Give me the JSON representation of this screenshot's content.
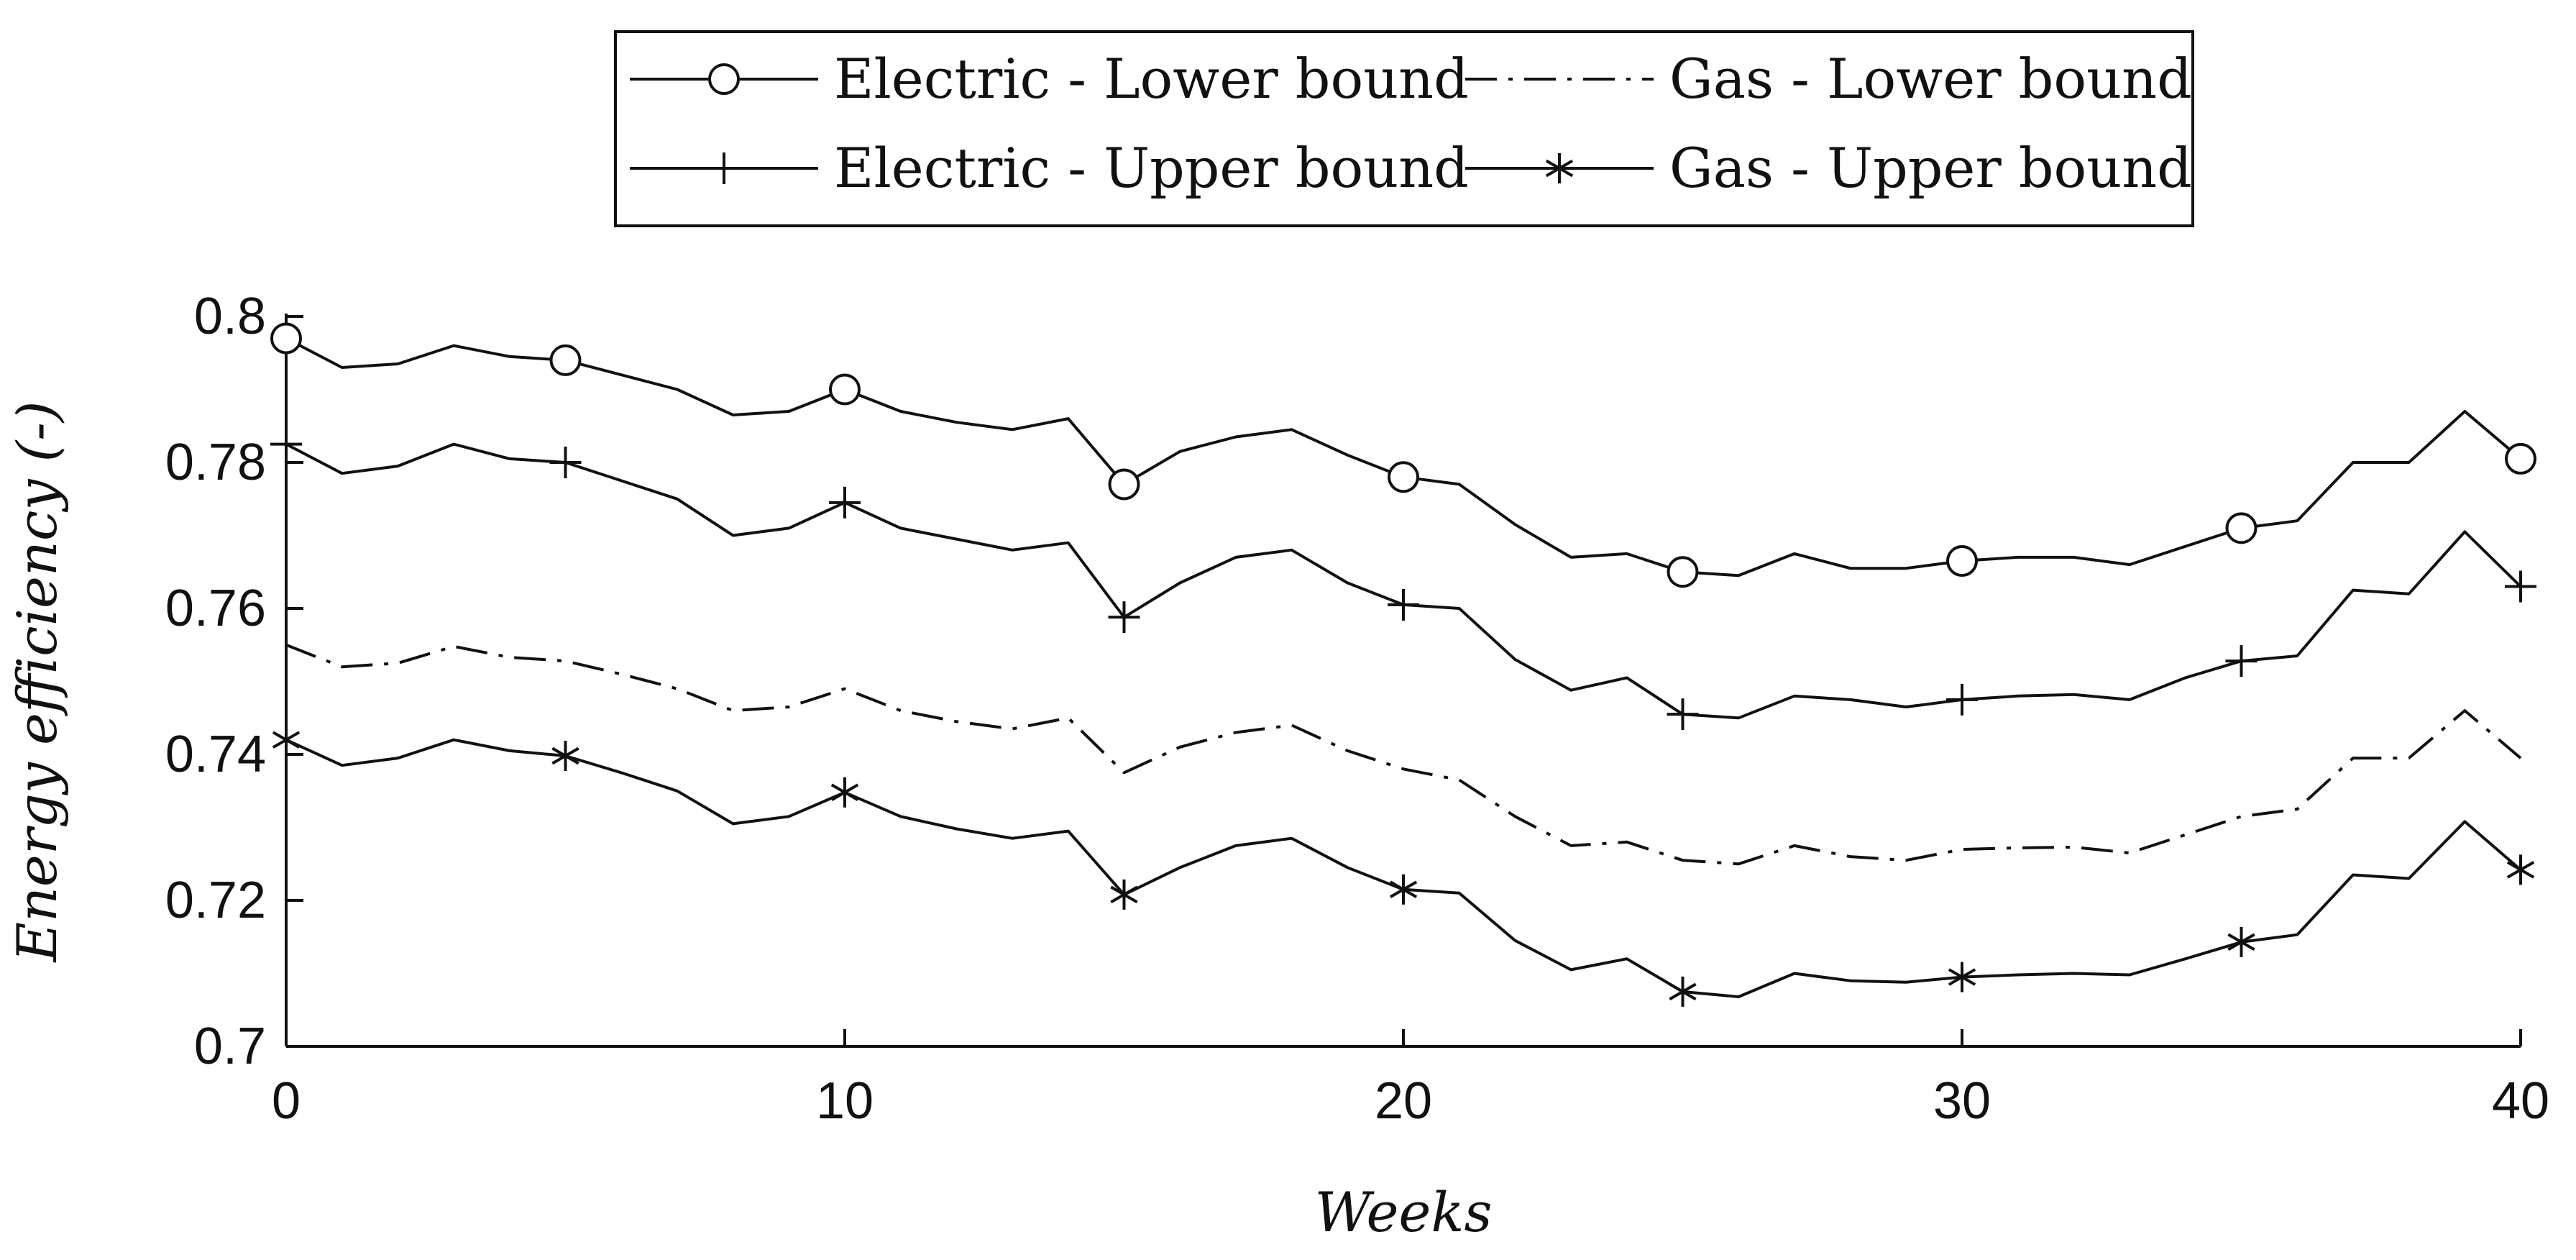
{
  "chart_data": {
    "type": "line",
    "title": "",
    "xlabel": "Weeks",
    "ylabel": "Energy efficiency (-)",
    "xlim": [
      0,
      40
    ],
    "ylim": [
      0.7,
      0.8
    ],
    "xticks": [
      0,
      10,
      20,
      30,
      40
    ],
    "yticks": [
      0.7,
      0.72,
      0.74,
      0.76,
      0.78,
      0.8
    ],
    "xtick_labels": [
      "0",
      "10",
      "20",
      "30",
      "40"
    ],
    "ytick_labels": [
      "0.7",
      "0.72",
      "0.74",
      "0.76",
      "0.78",
      "0.8"
    ],
    "grid": false,
    "legend_position": "top-center",
    "x": [
      0,
      1,
      2,
      3,
      4,
      5,
      6,
      7,
      8,
      9,
      10,
      11,
      12,
      13,
      14,
      15,
      16,
      17,
      18,
      19,
      20,
      21,
      22,
      23,
      24,
      25,
      26,
      27,
      28,
      29,
      30,
      31,
      32,
      33,
      34,
      35,
      36,
      37,
      38,
      39,
      40
    ],
    "series": [
      {
        "name": "Electric - Lower bound",
        "line_style": "solid",
        "marker": "circle",
        "marker_every": 5,
        "values": [
          0.797,
          0.793,
          0.7935,
          0.796,
          0.7945,
          0.794,
          0.792,
          0.79,
          0.7865,
          0.787,
          0.79,
          0.787,
          0.7855,
          0.7845,
          0.786,
          0.777,
          0.7815,
          0.7835,
          0.7845,
          0.781,
          0.778,
          0.777,
          0.7715,
          0.767,
          0.7675,
          0.765,
          0.7645,
          0.7675,
          0.7655,
          0.7655,
          0.7665,
          0.767,
          0.767,
          0.766,
          0.7685,
          0.771,
          0.772,
          0.78,
          0.78,
          0.787,
          0.7805
        ]
      },
      {
        "name": "Gas - Lower bound",
        "line_style": "dashdot",
        "marker": "none",
        "marker_every": 5,
        "values": [
          0.755,
          0.752,
          0.7525,
          0.7548,
          0.7533,
          0.7528,
          0.751,
          0.749,
          0.746,
          0.7465,
          0.749,
          0.746,
          0.7445,
          0.7435,
          0.745,
          0.7375,
          0.741,
          0.743,
          0.744,
          0.7405,
          0.738,
          0.7365,
          0.7315,
          0.7275,
          0.728,
          0.7255,
          0.725,
          0.7275,
          0.726,
          0.7255,
          0.727,
          0.7272,
          0.7273,
          0.7265,
          0.729,
          0.7315,
          0.7325,
          0.7395,
          0.7395,
          0.746,
          0.7395
        ]
      },
      {
        "name": "Electric - Upper bound",
        "line_style": "solid",
        "marker": "plus",
        "marker_every": 5,
        "values": [
          0.7825,
          0.7785,
          0.7795,
          0.7825,
          0.7805,
          0.78,
          0.7775,
          0.775,
          0.77,
          0.771,
          0.7745,
          0.771,
          0.7695,
          0.768,
          0.769,
          0.7588,
          0.7635,
          0.767,
          0.768,
          0.7635,
          0.7605,
          0.76,
          0.753,
          0.7488,
          0.7505,
          0.7455,
          0.745,
          0.748,
          0.7475,
          0.7465,
          0.7475,
          0.748,
          0.7482,
          0.7475,
          0.7505,
          0.7528,
          0.7535,
          0.7625,
          0.762,
          0.7705,
          0.763
        ]
      },
      {
        "name": "Gas - Upper bound",
        "line_style": "solid",
        "marker": "asterisk",
        "marker_every": 5,
        "values": [
          0.742,
          0.7385,
          0.7395,
          0.742,
          0.7405,
          0.7398,
          0.7375,
          0.735,
          0.7305,
          0.7315,
          0.7348,
          0.7315,
          0.7298,
          0.7285,
          0.7295,
          0.7208,
          0.7245,
          0.7275,
          0.7285,
          0.7245,
          0.7215,
          0.721,
          0.7145,
          0.7105,
          0.712,
          0.7075,
          0.7068,
          0.71,
          0.709,
          0.7088,
          0.7095,
          0.7098,
          0.71,
          0.7098,
          0.712,
          0.7143,
          0.7153,
          0.7235,
          0.723,
          0.7308,
          0.7242
        ]
      }
    ],
    "legend": {
      "rows": [
        [
          "Electric - Lower bound",
          "Gas - Lower bound"
        ],
        [
          "Electric - Upper bound",
          "Gas - Upper bound"
        ]
      ]
    },
    "colors": {
      "line": "#111111",
      "axis": "#111111",
      "background": "#ffffff"
    }
  }
}
